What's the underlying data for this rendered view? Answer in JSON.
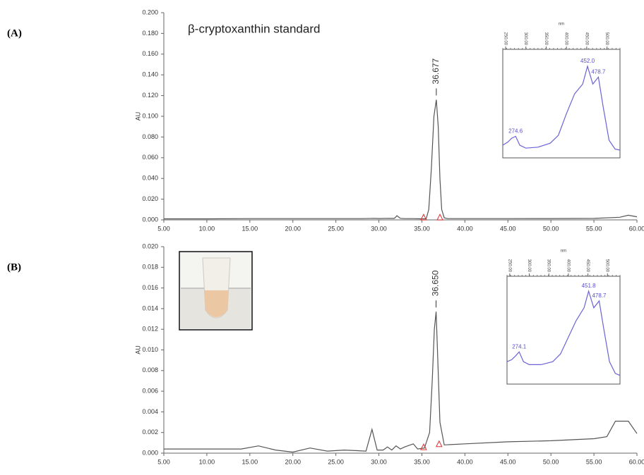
{
  "chart_data": [
    {
      "type": "line",
      "panel": "(A)",
      "title": "β-cryptoxanthin standard",
      "ylabel": "AU",
      "color": "#555555",
      "x": [
        5,
        10,
        15,
        20,
        25,
        28,
        29.5,
        30,
        31,
        31.8,
        32.1,
        32.5,
        33,
        34,
        35,
        35.5,
        35.8,
        36.1,
        36.4,
        36.677,
        36.9,
        37.1,
        37.3,
        37.6,
        38,
        40,
        45,
        50,
        55,
        58,
        59,
        60
      ],
      "values": [
        0.001,
        0.001,
        0.0012,
        0.0012,
        0.0012,
        0.0012,
        0.0015,
        0.0013,
        0.0015,
        0.0014,
        0.004,
        0.0015,
        0.0012,
        0.0012,
        0.001,
        0.001,
        0.01,
        0.05,
        0.1,
        0.116,
        0.09,
        0.04,
        0.01,
        0.002,
        0.0012,
        0.0012,
        0.0012,
        0.0013,
        0.0014,
        0.0025,
        0.0045,
        0.003
      ],
      "peak_label": {
        "value": 36.677,
        "label": "36.677"
      },
      "integration_marks": {
        "x": [
          35.2,
          37.1
        ],
        "values": [
          0.0006,
          0.0006
        ],
        "color": "#e03030"
      },
      "xlim": [
        5,
        60
      ],
      "ylim": [
        0,
        0.2
      ],
      "xticks": [
        {
          "value": 5,
          "label": "5.00"
        },
        {
          "value": 10,
          "label": "10.00"
        },
        {
          "value": 15,
          "label": "15.00"
        },
        {
          "value": 20,
          "label": "20.00"
        },
        {
          "value": 25,
          "label": "25.00"
        },
        {
          "value": 30,
          "label": "30.00"
        },
        {
          "value": 35,
          "label": "35.00"
        },
        {
          "value": 40,
          "label": "40.00"
        },
        {
          "value": 45,
          "label": "45.00"
        },
        {
          "value": 50,
          "label": "50.00"
        },
        {
          "value": 55,
          "label": "55.00"
        },
        {
          "value": 60,
          "label": "60.00"
        }
      ],
      "yticks": [
        {
          "value": 0,
          "label": "0.000"
        },
        {
          "value": 0.02,
          "label": "0.020"
        },
        {
          "value": 0.04,
          "label": "0.040"
        },
        {
          "value": 0.06,
          "label": "0.060"
        },
        {
          "value": 0.08,
          "label": "0.080"
        },
        {
          "value": 0.1,
          "label": "0.100"
        },
        {
          "value": 0.12,
          "label": "0.120"
        },
        {
          "value": 0.14,
          "label": "0.140"
        },
        {
          "value": 0.16,
          "label": "0.160"
        },
        {
          "value": 0.18,
          "label": "0.180"
        },
        {
          "value": 0.2,
          "label": "0.200"
        }
      ],
      "inset": {
        "type": "line",
        "xlabel": "nm",
        "color": "#6b63d6",
        "x": [
          243,
          255,
          265,
          274.6,
          285,
          300,
          330,
          360,
          380,
          400,
          420,
          440,
          452,
          465,
          478.7,
          490,
          505,
          520,
          532
        ],
        "values": [
          0.1,
          0.13,
          0.17,
          0.19,
          0.1,
          0.07,
          0.08,
          0.12,
          0.2,
          0.42,
          0.62,
          0.72,
          0.9,
          0.72,
          0.79,
          0.5,
          0.15,
          0.06,
          0.05
        ],
        "xlim": [
          243,
          532
        ],
        "ylim": [
          0,
          1
        ],
        "xticks": [
          {
            "value": 250,
            "label": "250.00"
          },
          {
            "value": 300,
            "label": "300.00"
          },
          {
            "value": 350,
            "label": "350.00"
          },
          {
            "value": 400,
            "label": "400.00"
          },
          {
            "value": 450,
            "label": "450.00"
          },
          {
            "value": 500,
            "label": "500.00"
          }
        ],
        "peaks": [
          {
            "value": 274.6,
            "label": "274.6"
          },
          {
            "value": 452.0,
            "label": "452.0"
          },
          {
            "value": 478.7,
            "label": "478.7"
          }
        ]
      }
    },
    {
      "type": "line",
      "panel": "(B)",
      "ylabel": "AU",
      "color": "#555555",
      "x": [
        5,
        10,
        14,
        16,
        18,
        20,
        22,
        24,
        26,
        28.5,
        29.2,
        29.8,
        30.5,
        31,
        31.5,
        32,
        32.5,
        33,
        34,
        34.5,
        35.3,
        35.9,
        36.2,
        36.45,
        36.65,
        36.85,
        37.1,
        37.6,
        40,
        45,
        50,
        55,
        56.5,
        57.5,
        59,
        60
      ],
      "values": [
        0.0004,
        0.0004,
        0.0004,
        0.0007,
        0.0003,
        0.0001,
        0.0005,
        0.0002,
        0.0003,
        0.0002,
        0.0023,
        0.0003,
        0.0003,
        0.0006,
        0.0003,
        0.0007,
        0.0004,
        0.0006,
        0.0009,
        0.0004,
        0.0005,
        0.002,
        0.007,
        0.012,
        0.0137,
        0.009,
        0.003,
        0.0008,
        0.0009,
        0.0011,
        0.0012,
        0.0014,
        0.0016,
        0.0031,
        0.0031,
        0.0019
      ],
      "peak_label": {
        "value": 36.65,
        "label": "36.650"
      },
      "integration_marks": {
        "x": [
          35.2,
          37.0
        ],
        "values": [
          0.0004,
          0.0007
        ],
        "color": "#e03030"
      },
      "xlim": [
        5,
        60
      ],
      "ylim": [
        0,
        0.02
      ],
      "xticks": [
        {
          "value": 5,
          "label": "5.00"
        },
        {
          "value": 10,
          "label": "10.00"
        },
        {
          "value": 15,
          "label": "15.00"
        },
        {
          "value": 20,
          "label": "20.00"
        },
        {
          "value": 25,
          "label": "25.00"
        },
        {
          "value": 30,
          "label": "30.00"
        },
        {
          "value": 35,
          "label": "35.00"
        },
        {
          "value": 40,
          "label": "40.00"
        },
        {
          "value": 45,
          "label": "45.00"
        },
        {
          "value": 50,
          "label": "50.00"
        },
        {
          "value": 55,
          "label": "55.00"
        },
        {
          "value": 60,
          "label": "60.00"
        }
      ],
      "yticks": [
        {
          "value": 0,
          "label": "0.000"
        },
        {
          "value": 0.002,
          "label": "0.002"
        },
        {
          "value": 0.004,
          "label": "0.004"
        },
        {
          "value": 0.006,
          "label": "0.006"
        },
        {
          "value": 0.008,
          "label": "0.008"
        },
        {
          "value": 0.01,
          "label": "0.010"
        },
        {
          "value": 0.012,
          "label": "0.012"
        },
        {
          "value": 0.014,
          "label": "0.014"
        },
        {
          "value": 0.016,
          "label": "0.016"
        },
        {
          "value": 0.018,
          "label": "0.018"
        },
        {
          "value": 0.02,
          "label": "0.020"
        }
      ],
      "inset": {
        "type": "line",
        "xlabel": "nm",
        "color": "#6b63d6",
        "x": [
          243,
          255,
          265,
          274.1,
          285,
          300,
          330,
          360,
          380,
          400,
          420,
          440,
          451.8,
          465,
          478.7,
          490,
          505,
          520,
          532
        ],
        "values": [
          0.2,
          0.22,
          0.26,
          0.3,
          0.2,
          0.17,
          0.17,
          0.2,
          0.28,
          0.45,
          0.62,
          0.75,
          0.92,
          0.75,
          0.82,
          0.55,
          0.2,
          0.08,
          0.06
        ],
        "xlim": [
          243,
          532
        ],
        "ylim": [
          0,
          1
        ],
        "xticks": [
          {
            "value": 250,
            "label": "250.00"
          },
          {
            "value": 300,
            "label": "300.00"
          },
          {
            "value": 350,
            "label": "350.00"
          },
          {
            "value": 400,
            "label": "400.00"
          },
          {
            "value": 450,
            "label": "450.00"
          },
          {
            "value": 500,
            "label": "500.00"
          }
        ],
        "peaks": [
          {
            "value": 274.1,
            "label": "274.1"
          },
          {
            "value": 451.8,
            "label": "451.8"
          },
          {
            "value": 478.7,
            "label": "478.7"
          }
        ]
      }
    }
  ]
}
